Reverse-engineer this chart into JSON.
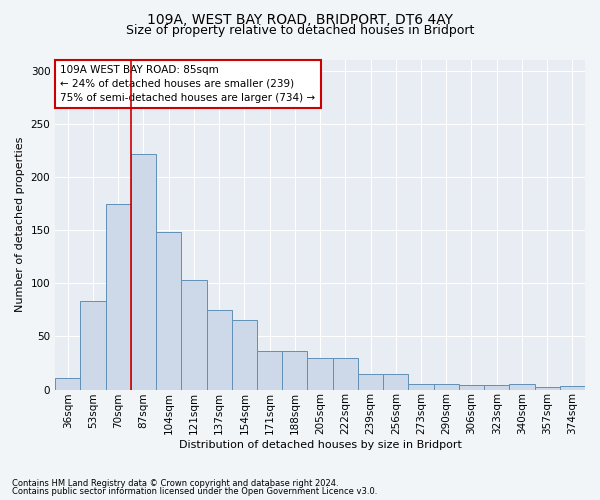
{
  "title1": "109A, WEST BAY ROAD, BRIDPORT, DT6 4AY",
  "title2": "Size of property relative to detached houses in Bridport",
  "xlabel": "Distribution of detached houses by size in Bridport",
  "ylabel": "Number of detached properties",
  "categories": [
    "36sqm",
    "53sqm",
    "70sqm",
    "87sqm",
    "104sqm",
    "121sqm",
    "137sqm",
    "154sqm",
    "171sqm",
    "188sqm",
    "205sqm",
    "222sqm",
    "239sqm",
    "256sqm",
    "273sqm",
    "290sqm",
    "306sqm",
    "323sqm",
    "340sqm",
    "357sqm",
    "374sqm"
  ],
  "values": [
    11,
    83,
    175,
    222,
    148,
    103,
    75,
    65,
    36,
    36,
    30,
    30,
    15,
    15,
    5,
    5,
    4,
    4,
    5,
    2,
    3
  ],
  "bar_color": "#cdd9e8",
  "bar_edge_color": "#6090b8",
  "red_line_x": 2.5,
  "annotation_text": "109A WEST BAY ROAD: 85sqm\n← 24% of detached houses are smaller (239)\n75% of semi-detached houses are larger (734) →",
  "annotation_box_color": "#ffffff",
  "annotation_box_edge_color": "#cc0000",
  "annotation_fontsize": 7.5,
  "red_line_color": "#cc0000",
  "ylim": [
    0,
    310
  ],
  "yticks": [
    0,
    50,
    100,
    150,
    200,
    250,
    300
  ],
  "footer1": "Contains HM Land Registry data © Crown copyright and database right 2024.",
  "footer2": "Contains public sector information licensed under the Open Government Licence v3.0.",
  "bg_color": "#f2f5f8",
  "plot_bg_color": "#e8edf3",
  "grid_color": "#ffffff",
  "title1_fontsize": 10,
  "title2_fontsize": 9,
  "xlabel_fontsize": 8,
  "ylabel_fontsize": 8,
  "tick_fontsize": 7.5,
  "footer_fontsize": 6
}
